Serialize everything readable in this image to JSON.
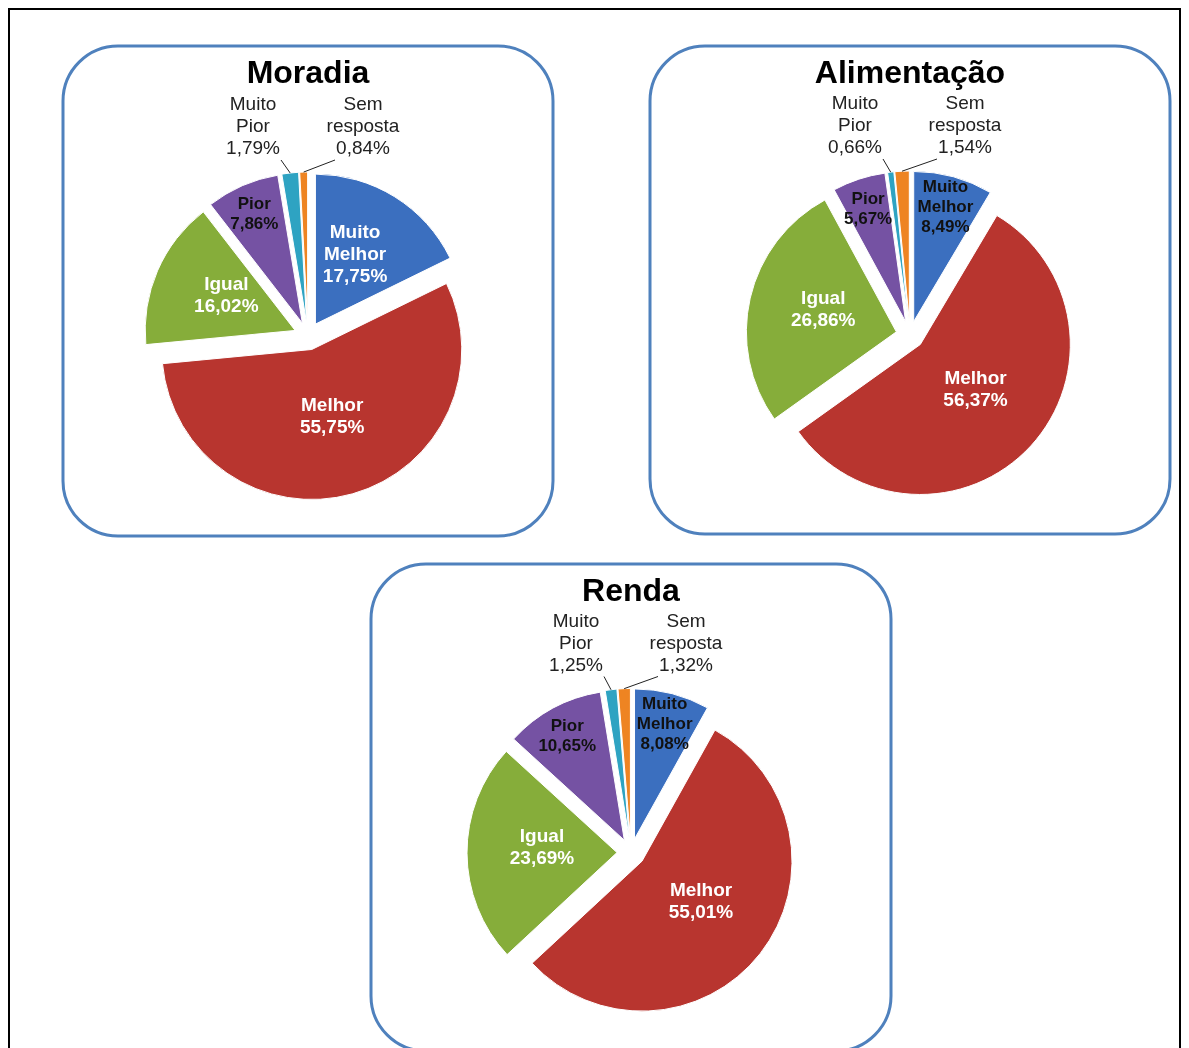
{
  "chart_data": [
    {
      "type": "pie",
      "title": "Moradia",
      "categories": [
        "Muito Melhor",
        "Melhor",
        "Igual",
        "Pior",
        "Muito Pior",
        "Sem resposta"
      ],
      "values": [
        17.75,
        55.75,
        16.02,
        7.86,
        1.79,
        0.84
      ],
      "colors": [
        "#3b6fbf",
        "#b8352f",
        "#86ad3a",
        "#7552a3",
        "#2ea3c2",
        "#ee8422"
      ],
      "value_labels": [
        "17,75%",
        "55,75%",
        "16,02%",
        "7,86%",
        "1,79%",
        "0,84%"
      ]
    },
    {
      "type": "pie",
      "title": "Alimentação",
      "categories": [
        "Muito Melhor",
        "Melhor",
        "Igual",
        "Pior",
        "Muito Pior",
        "Sem resposta"
      ],
      "values": [
        8.49,
        56.37,
        26.86,
        5.67,
        0.66,
        1.54
      ],
      "colors": [
        "#3b6fbf",
        "#b8352f",
        "#86ad3a",
        "#7552a3",
        "#2ea3c2",
        "#ee8422"
      ],
      "value_labels": [
        "8,49%",
        "56,37%",
        "26,86%",
        "5,67%",
        "0,66%",
        "1,54%"
      ]
    },
    {
      "type": "pie",
      "title": "Renda",
      "categories": [
        "Muito Melhor",
        "Melhor",
        "Igual",
        "Pior",
        "Muito Pior",
        "Sem resposta"
      ],
      "values": [
        8.08,
        55.01,
        23.69,
        10.65,
        1.25,
        1.32
      ],
      "colors": [
        "#3b6fbf",
        "#b8352f",
        "#86ad3a",
        "#7552a3",
        "#2ea3c2",
        "#ee8422"
      ],
      "value_labels": [
        "8,08%",
        "55,01%",
        "23,69%",
        "10,65%",
        "1,25%",
        "1,32%"
      ]
    }
  ]
}
